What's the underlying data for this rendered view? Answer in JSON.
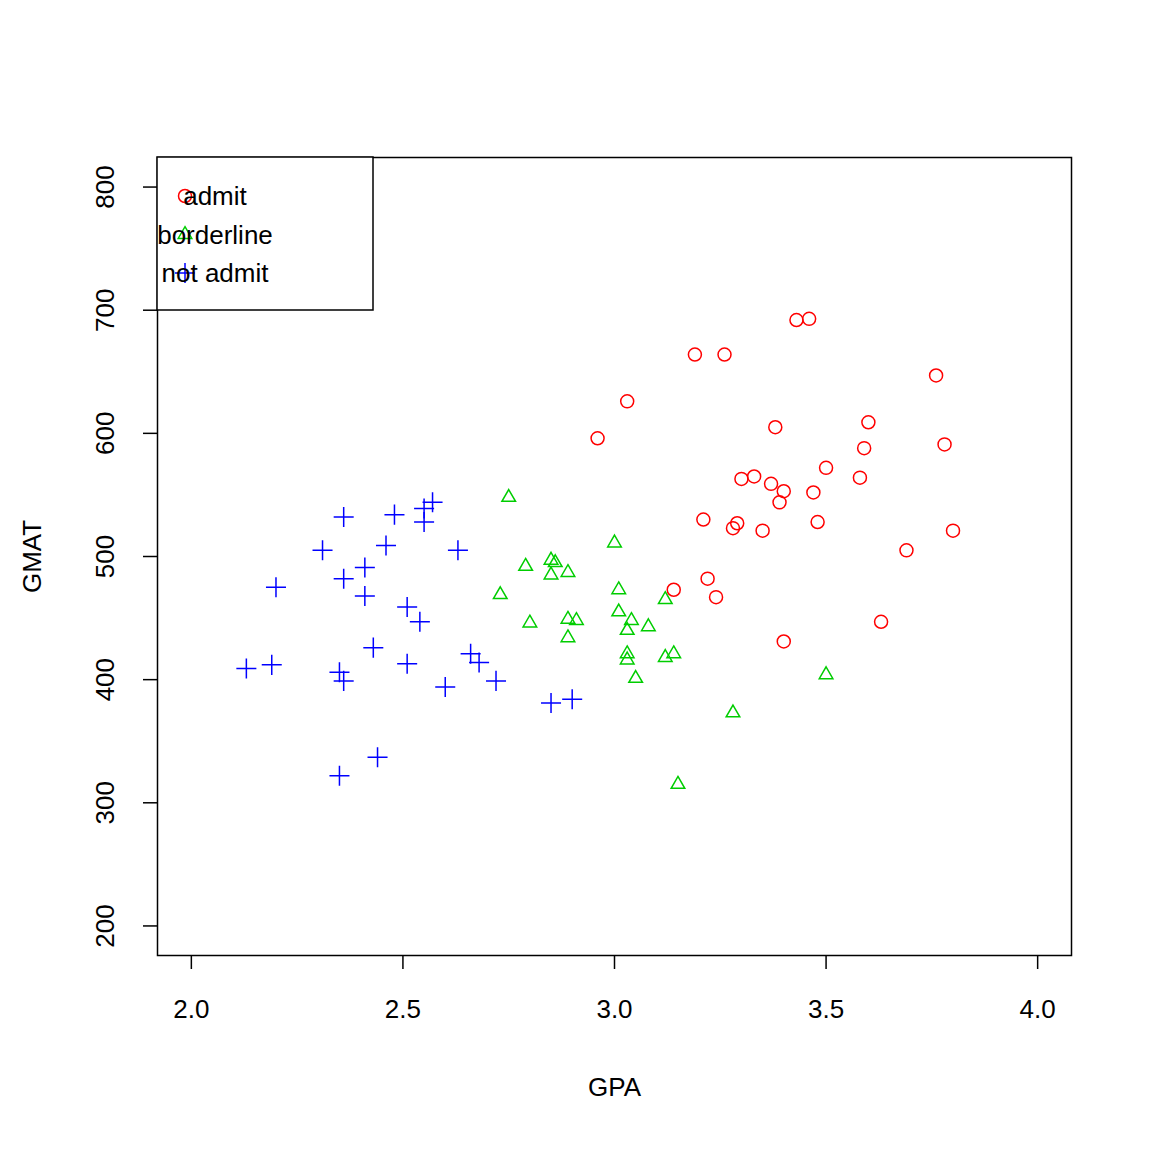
{
  "chart_data": {
    "type": "scatter",
    "x_label": "GPA",
    "y_label": "GMAT",
    "xlim": [
      1.92,
      4.08
    ],
    "ylim": [
      176,
      824
    ],
    "xticks": [
      {
        "value": 2,
        "label": "2.0"
      },
      2.5,
      {
        "value": 3,
        "label": "3.0"
      },
      3.5,
      {
        "value": 4,
        "label": "4.0"
      }
    ],
    "yticks": [
      200,
      300,
      400,
      500,
      600,
      700,
      800
    ],
    "grid": false,
    "legend": "top-left",
    "series": [
      {
        "name": "admit",
        "color": "#ff0000",
        "marker": "circle",
        "x": [
          3.43,
          3.46,
          3.19,
          3.26,
          3.76,
          3.03,
          3.6,
          2.96,
          3.38,
          3.59,
          3.78,
          3.5,
          3.58,
          3.3,
          3.33,
          3.37,
          3.4,
          3.39,
          3.47,
          3.21,
          3.29,
          3.28,
          3.48,
          3.35,
          3.8,
          3.69,
          3.22,
          3.14,
          3.24,
          3.63,
          3.4
        ],
        "y": [
          692,
          693,
          664,
          664,
          647,
          626,
          609,
          596,
          605,
          588,
          591,
          572,
          564,
          563,
          565,
          559,
          553,
          544,
          552,
          530,
          527,
          523,
          528,
          521,
          521,
          505,
          482,
          473,
          467,
          447,
          431
        ]
      },
      {
        "name": "borderline",
        "color": "#00cd00",
        "marker": "triangle",
        "x": [
          2.75,
          3.0,
          2.85,
          2.86,
          2.79,
          2.89,
          2.85,
          3.01,
          2.73,
          3.12,
          3.01,
          2.89,
          2.8,
          2.91,
          3.04,
          3.08,
          3.03,
          2.89,
          3.14,
          3.03,
          3.12,
          3.03,
          3.05,
          3.5,
          3.28,
          3.15
        ],
        "y": [
          548,
          511,
          497,
          495,
          492,
          487,
          485,
          473,
          469,
          465,
          455,
          449,
          446,
          448,
          448,
          443,
          440,
          434,
          421,
          421,
          418,
          416,
          401,
          404,
          373,
          315
        ]
      },
      {
        "name": "not admit",
        "color": "#0000ff",
        "marker": "plus",
        "x": [
          2.57,
          2.55,
          2.48,
          2.36,
          2.55,
          2.46,
          2.31,
          2.63,
          2.41,
          2.36,
          2.2,
          2.41,
          2.51,
          2.54,
          2.43,
          2.66,
          2.68,
          2.19,
          2.51,
          2.13,
          2.35,
          2.36,
          2.72,
          2.6,
          2.85,
          2.9,
          2.44,
          2.35
        ],
        "y": [
          544,
          539,
          534,
          532,
          528,
          509,
          505,
          505,
          491,
          482,
          475,
          468,
          459,
          447,
          426,
          421,
          414,
          412,
          413,
          409,
          406,
          399,
          399,
          394,
          381,
          384,
          337,
          322
        ]
      }
    ]
  }
}
